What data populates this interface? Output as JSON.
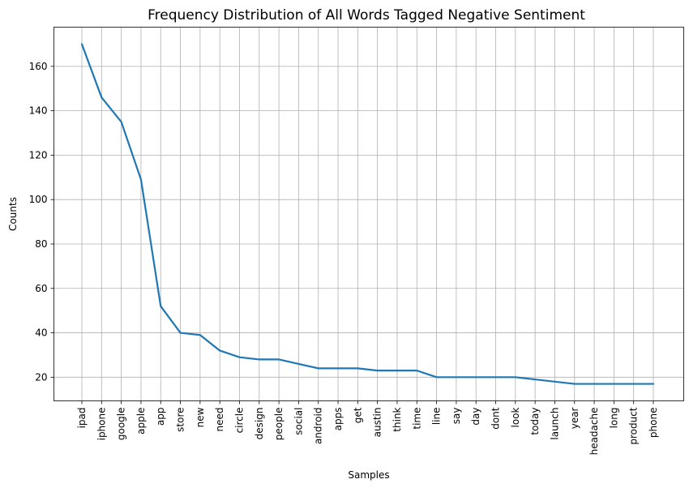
{
  "chart_data": {
    "type": "line",
    "title": "Frequency Distribution of All Words Tagged Negative Sentiment",
    "xlabel": "Samples",
    "ylabel": "Counts",
    "categories": [
      "ipad",
      "iphone",
      "google",
      "apple",
      "app",
      "store",
      "new",
      "need",
      "circle",
      "design",
      "people",
      "social",
      "android",
      "apps",
      "get",
      "austin",
      "think",
      "time",
      "line",
      "say",
      "day",
      "dont",
      "look",
      "today",
      "launch",
      "year",
      "headache",
      "long",
      "product",
      "phone"
    ],
    "series": [
      {
        "values": [
          170,
          146,
          135,
          109,
          52,
          40,
          39,
          32,
          29,
          28,
          28,
          26,
          24,
          24,
          24,
          23,
          23,
          23,
          20,
          20,
          20,
          20,
          20,
          19,
          18,
          17,
          17,
          17,
          17,
          17
        ],
        "color": "#1f77b4"
      }
    ],
    "ylim": [
      9.35,
      177.65
    ],
    "yticks": [
      20,
      40,
      60,
      80,
      100,
      120,
      140,
      160
    ],
    "grid": true
  }
}
